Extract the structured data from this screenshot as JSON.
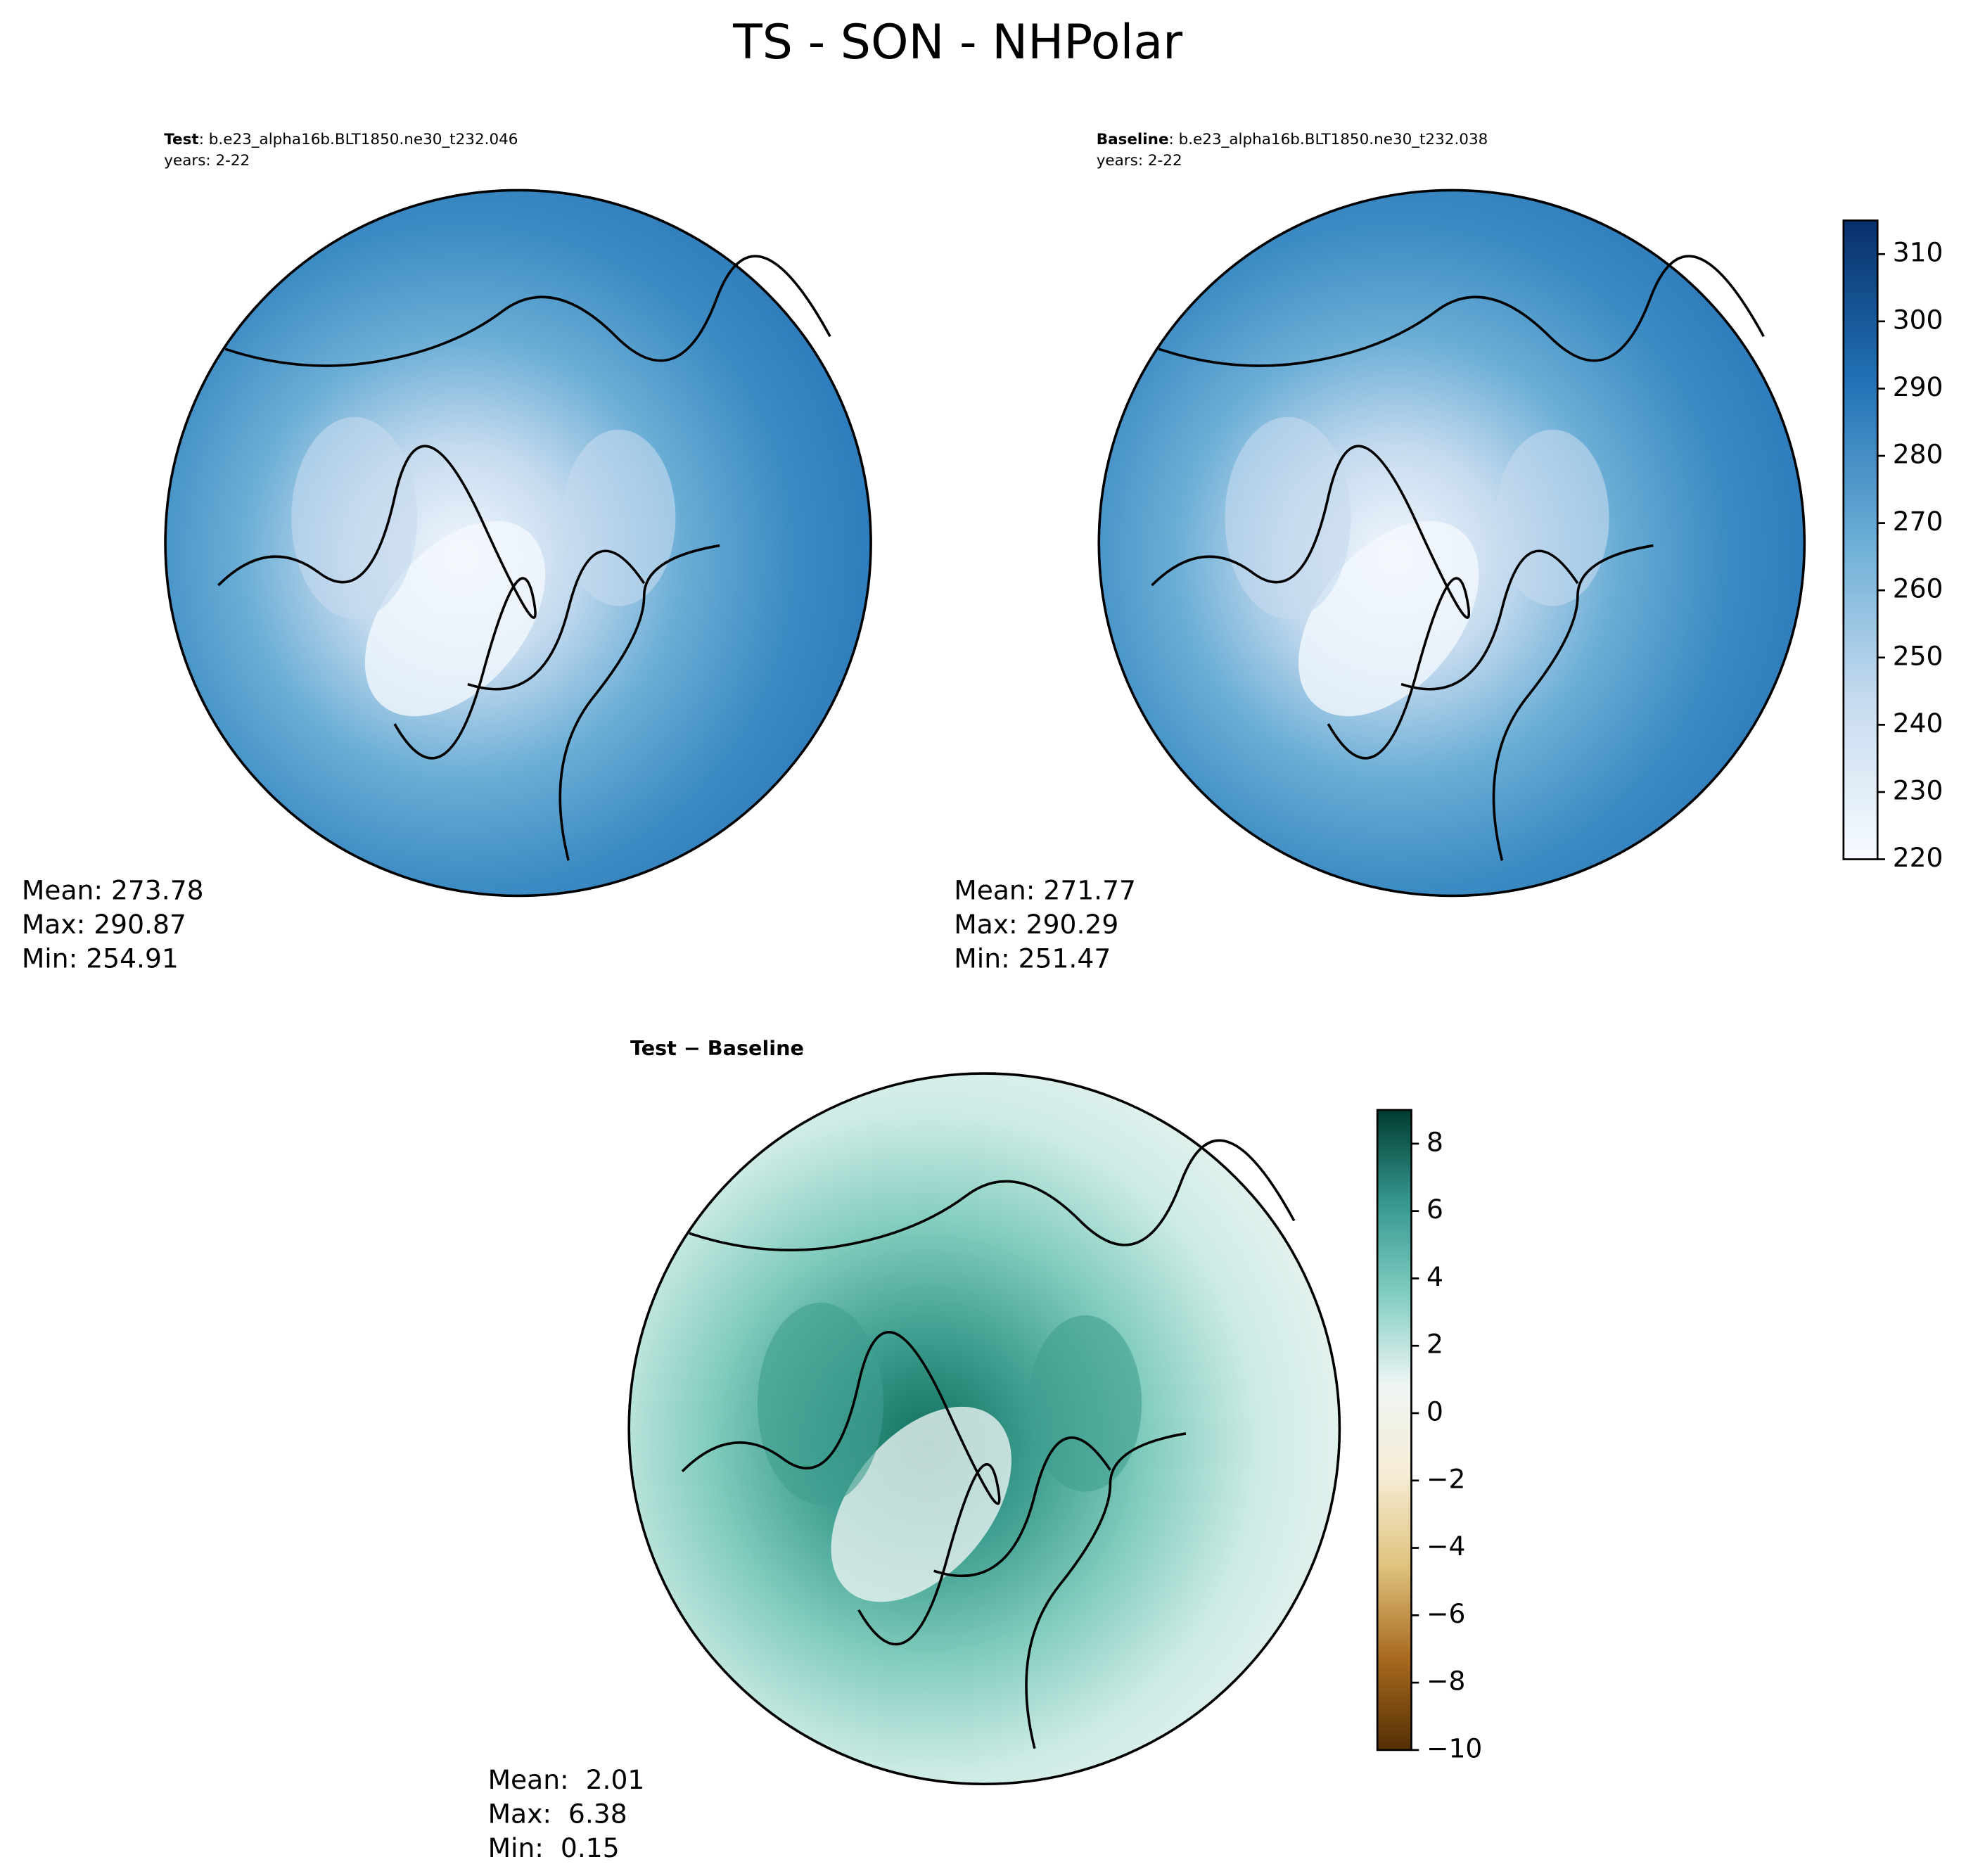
{
  "title": "TS - SON - NHPolar",
  "chart_data": [
    {
      "type": "map",
      "title_bold": "Test",
      "title": ": b.e23_alpha16b.BLT1850.ne30_t232.046",
      "subtitle": "years: 2-22",
      "stats": [
        "Mean: 273.78",
        "Max: 290.87",
        "Min: 254.91"
      ],
      "colors": [
        "#2a78b8",
        "#3d8cc4",
        "#6baed6",
        "#c6dbef",
        "#f2f7fd"
      ]
    },
    {
      "type": "map",
      "title_bold": "Baseline",
      "title": ": b.e23_alpha16b.BLT1850.ne30_t232.038",
      "subtitle": "years: 2-22",
      "stats": [
        "Mean: 271.77",
        "Max: 290.29",
        "Min: 251.47"
      ],
      "colors": [
        "#2a78b8",
        "#3d8cc4",
        "#6baed6",
        "#c6dbef",
        "#f2f7fd"
      ],
      "zlim": [
        220,
        315
      ],
      "zticks": [
        220,
        230,
        240,
        250,
        260,
        270,
        280,
        290,
        300,
        310
      ],
      "colormap": [
        "#f7fbff",
        "#c6dbef",
        "#6baed6",
        "#2171b5",
        "#08306b"
      ]
    },
    {
      "type": "map",
      "title": "Test − Baseline",
      "stats": [
        "Mean:  2.01",
        "Max:  6.38",
        "Min:  0.15"
      ],
      "colors": [
        "#e8f3f1",
        "#cdebe5",
        "#83cdbf",
        "#3f9f90",
        "#11705f"
      ],
      "zlim": [
        -10,
        9
      ],
      "zticks": [
        {
          "value": -10,
          "label": "−10"
        },
        {
          "value": -8,
          "label": "−8"
        },
        {
          "value": -6,
          "label": "−6"
        },
        {
          "value": -4,
          "label": "−4"
        },
        {
          "value": -2,
          "label": "−2"
        },
        0,
        2,
        4,
        6,
        8
      ],
      "colormap": [
        "#543005",
        "#a8691f",
        "#dfc27d",
        "#f6ecd5",
        "#eef5f4",
        "#80cdc1",
        "#35978f",
        "#003c30"
      ]
    }
  ]
}
